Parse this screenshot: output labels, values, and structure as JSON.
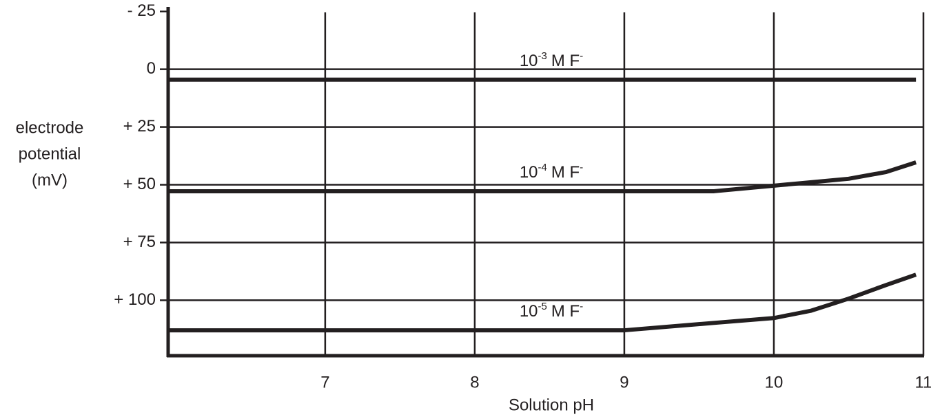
{
  "chart_data": {
    "type": "line",
    "x_label": "Solution pH",
    "y_label": [
      "electrode",
      "potential",
      "(mV)"
    ],
    "x": [
      5.95,
      9,
      9.6,
      10,
      10.25,
      10.5,
      10.75,
      10.95
    ],
    "series": [
      {
        "label": {
          "base": "10",
          "exponent": "-3",
          "unit": "M F",
          "charge": "-"
        },
        "color": "#231f20",
        "values": [
          4.5,
          4.5,
          4.5,
          4.5,
          4.5,
          4.5,
          4.5,
          4.5
        ]
      },
      {
        "label": {
          "base": "10",
          "exponent": "-4",
          "unit": "M F",
          "charge": "-"
        },
        "color": "#231f20",
        "values": [
          52.8,
          52.8,
          52.8,
          50.4,
          48.9,
          47.4,
          44.5,
          40.3
        ]
      },
      {
        "label": {
          "base": "10",
          "exponent": "-5",
          "unit": "M F",
          "charge": "-"
        },
        "color": "#231f20",
        "values": [
          113,
          113,
          109.8,
          107.7,
          104.5,
          99.3,
          93.4,
          88.9
        ]
      }
    ],
    "xlim": [
      5.95,
      11
    ],
    "xticks": [
      7,
      8,
      9,
      10,
      11
    ],
    "ylim": [
      -27,
      124
    ],
    "y_inverted": true,
    "yticks": [
      {
        "value": -25,
        "label": "- 25"
      },
      0,
      {
        "value": 25,
        "label": "+ 25"
      },
      {
        "value": 50,
        "label": "+ 50"
      },
      {
        "value": 75,
        "label": "+ 75"
      },
      {
        "value": 100,
        "label": "+ 100"
      }
    ],
    "grid": true
  }
}
